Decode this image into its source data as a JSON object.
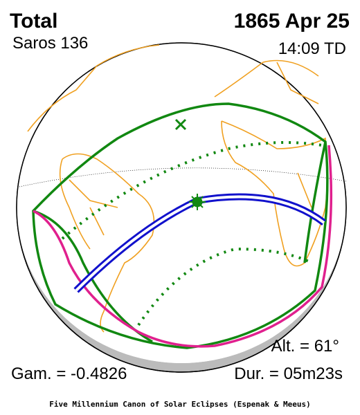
{
  "header": {
    "type": "Total",
    "saros": "Saros 136",
    "date": "1865 Apr 25",
    "time": "14:09 TD"
  },
  "footer": {
    "altitude": "Alt. = 61°",
    "duration": "Dur. = 05m23s",
    "gamma": "Gam. = -0.4826",
    "credit": "Five Millennium Canon of Solar Eclipses (Espenak & Meeus)"
  }
}
